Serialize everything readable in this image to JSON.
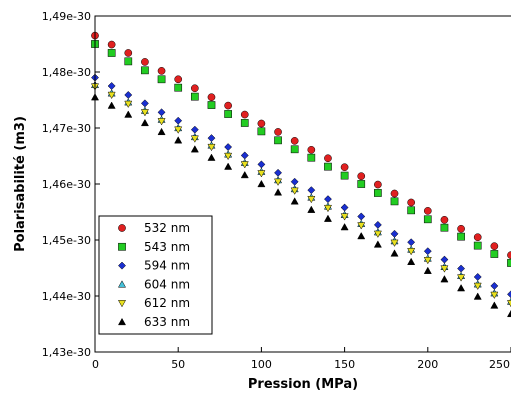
{
  "chart_data": {
    "type": "scatter",
    "title": "",
    "xlabel": "Pression (MPa)",
    "ylabel": "Polarisabilité (m3)",
    "xlim": [
      0,
      250
    ],
    "ylim": [
      1.43e-30,
      1.49e-30
    ],
    "grid": false,
    "legend_placement": "bottom-left",
    "x_ticks": [
      0,
      50,
      100,
      150,
      200,
      250
    ],
    "x_tick_labels": [
      "0",
      "50",
      "100",
      "150",
      "200",
      "250"
    ],
    "y_ticks": [
      1.43e-30,
      1.44e-30,
      1.45e-30,
      1.46e-30,
      1.47e-30,
      1.48e-30,
      1.49e-30
    ],
    "y_tick_labels": [
      "1,43e-30",
      "1,44e-30",
      "1,45e-30",
      "1,46e-30",
      "1,47e-30",
      "1,48e-30",
      "1,49e-30"
    ],
    "x": [
      0,
      10,
      20,
      30,
      40,
      50,
      60,
      70,
      80,
      90,
      100,
      110,
      120,
      130,
      140,
      150,
      160,
      170,
      180,
      190,
      200,
      210,
      220,
      230,
      240,
      250
    ],
    "series": [
      {
        "name": "532 nm",
        "marker": "circle",
        "color": "#e02020",
        "values": [
          1.4865e-30,
          1.4849e-30,
          1.4834e-30,
          1.4818e-30,
          1.4802e-30,
          1.4787e-30,
          1.4771e-30,
          1.4755e-30,
          1.474e-30,
          1.4724e-30,
          1.4708e-30,
          1.4693e-30,
          1.4677e-30,
          1.4661e-30,
          1.4646e-30,
          1.463e-30,
          1.4614e-30,
          1.4599e-30,
          1.4583e-30,
          1.4567e-30,
          1.4552e-30,
          1.4536e-30,
          1.452e-30,
          1.4505e-30,
          1.4489e-30,
          1.4473e-30
        ]
      },
      {
        "name": "543 nm",
        "marker": "square",
        "color": "#22cc22",
        "values": [
          1.485e-30,
          1.4834e-30,
          1.4819e-30,
          1.4803e-30,
          1.4787e-30,
          1.4772e-30,
          1.4756e-30,
          1.4741e-30,
          1.4725e-30,
          1.4709e-30,
          1.4694e-30,
          1.4678e-30,
          1.4662e-30,
          1.4647e-30,
          1.4631e-30,
          1.4615e-30,
          1.46e-30,
          1.4584e-30,
          1.4569e-30,
          1.4553e-30,
          1.4537e-30,
          1.4522e-30,
          1.4506e-30,
          1.449e-30,
          1.4475e-30,
          1.4459e-30
        ]
      },
      {
        "name": "594 nm",
        "marker": "diamond",
        "color": "#1a2fd0",
        "values": [
          1.479e-30,
          1.4775e-30,
          1.4759e-30,
          1.4744e-30,
          1.4728e-30,
          1.4713e-30,
          1.4697e-30,
          1.4682e-30,
          1.4666e-30,
          1.4651e-30,
          1.4635e-30,
          1.462e-30,
          1.4604e-30,
          1.4589e-30,
          1.4573e-30,
          1.4558e-30,
          1.4542e-30,
          1.4527e-30,
          1.4511e-30,
          1.4496e-30,
          1.448e-30,
          1.4465e-30,
          1.4449e-30,
          1.4434e-30,
          1.4418e-30,
          1.4403e-30
        ]
      },
      {
        "name": "604 nm",
        "marker": "triangle-up",
        "color": "#44c0d8",
        "values": [
          1.4777e-30,
          1.4762e-30,
          1.4746e-30,
          1.4731e-30,
          1.4715e-30,
          1.47e-30,
          1.4684e-30,
          1.4669e-30,
          1.4653e-30,
          1.4638e-30,
          1.4622e-30,
          1.4607e-30,
          1.4591e-30,
          1.4576e-30,
          1.456e-30,
          1.4545e-30,
          1.4529e-30,
          1.4514e-30,
          1.4498e-30,
          1.4483e-30,
          1.4467e-30,
          1.4452e-30,
          1.4436e-30,
          1.4421e-30,
          1.4405e-30,
          1.439e-30
        ]
      },
      {
        "name": "612 nm",
        "marker": "triangle-down",
        "color": "#e8e020",
        "values": [
          1.4774e-30,
          1.4759e-30,
          1.4743e-30,
          1.4728e-30,
          1.4712e-30,
          1.4697e-30,
          1.4681e-30,
          1.4666e-30,
          1.465e-30,
          1.4635e-30,
          1.4619e-30,
          1.4604e-30,
          1.4588e-30,
          1.4573e-30,
          1.4557e-30,
          1.4542e-30,
          1.4526e-30,
          1.4511e-30,
          1.4495e-30,
          1.448e-30,
          1.4464e-30,
          1.4449e-30,
          1.4433e-30,
          1.4418e-30,
          1.4402e-30,
          1.4387e-30
        ]
      },
      {
        "name": "633 nm",
        "marker": "triangle-up",
        "color": "#000000",
        "values": [
          1.4755e-30,
          1.474e-30,
          1.4724e-30,
          1.4709e-30,
          1.4693e-30,
          1.4678e-30,
          1.4662e-30,
          1.4647e-30,
          1.4631e-30,
          1.4616e-30,
          1.46e-30,
          1.4585e-30,
          1.4569e-30,
          1.4554e-30,
          1.4538e-30,
          1.4523e-30,
          1.4507e-30,
          1.4492e-30,
          1.4476e-30,
          1.4461e-30,
          1.4445e-30,
          1.443e-30,
          1.4414e-30,
          1.4399e-30,
          1.4383e-30,
          1.4368e-30
        ]
      }
    ]
  }
}
